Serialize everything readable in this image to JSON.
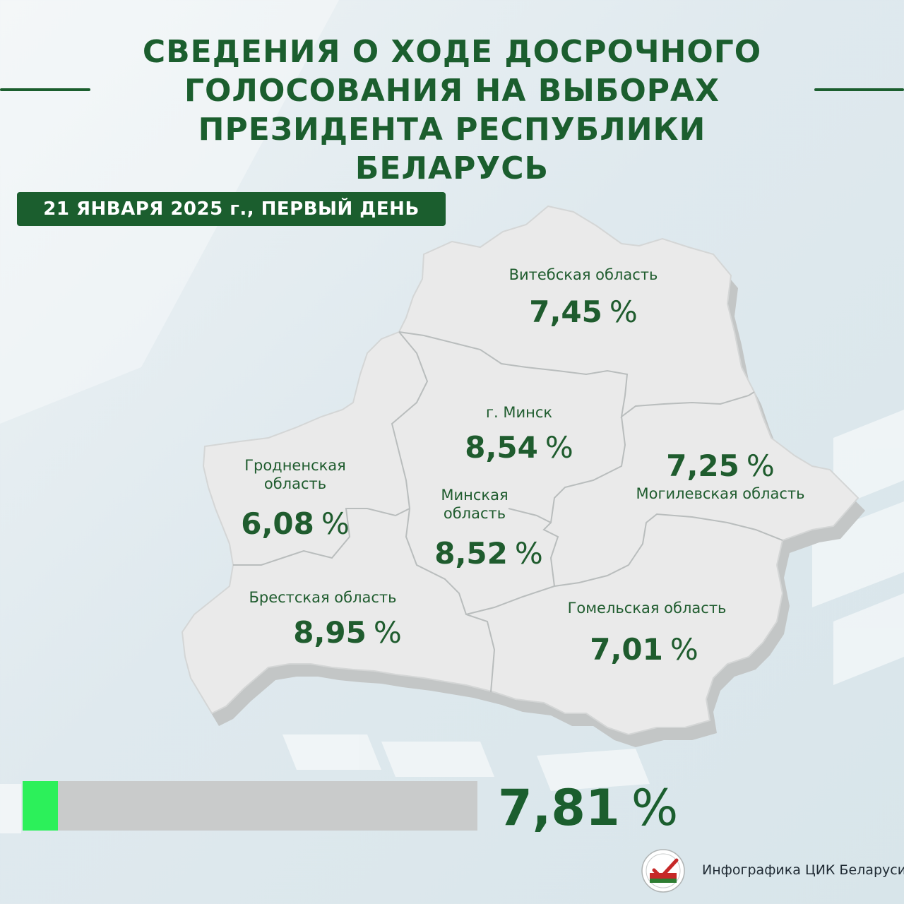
{
  "title_lines": [
    "СВЕДЕНИЯ О ХОДЕ ДОСРОЧНОГО",
    "ГОЛОСОВАНИЯ НА ВЫБОРАХ",
    "ПРЕЗИДЕНТА РЕСПУБЛИКИ БЕЛАРУСЬ"
  ],
  "date_badge": "21 ЯНВАРЯ 2025 г., ПЕРВЫЙ ДЕНЬ",
  "regions": {
    "vitebsk": {
      "name": "Витебская область",
      "value": "7,45",
      "unit": "%"
    },
    "minsk_city": {
      "name": "г. Минск",
      "value": "8,54",
      "unit": "%"
    },
    "grodno": {
      "name_line1": "Гродненская",
      "name_line2": "область",
      "value": "6,08",
      "unit": "%"
    },
    "mogilev": {
      "name": "Могилевская область",
      "value": "7,25",
      "unit": "%"
    },
    "minsk_region": {
      "name_line1": "Минская",
      "name_line2": "область",
      "value": "8,52",
      "unit": "%"
    },
    "brest": {
      "name": "Брестская область",
      "value": "8,95",
      "unit": "%"
    },
    "gomel": {
      "name": "Гомельская область",
      "value": "7,01",
      "unit": "%"
    }
  },
  "total": {
    "value": "7,81",
    "unit": "%",
    "progress_percent": 7.81
  },
  "credit": "Инфографика ЦИК Беларуси",
  "colors": {
    "title_green": "#1b5e2e",
    "map_fill": "#eaeaea",
    "map_shadow": "#c3c6c6",
    "progress_fill": "#2cf05a",
    "progress_track": "#c9cbcb"
  }
}
